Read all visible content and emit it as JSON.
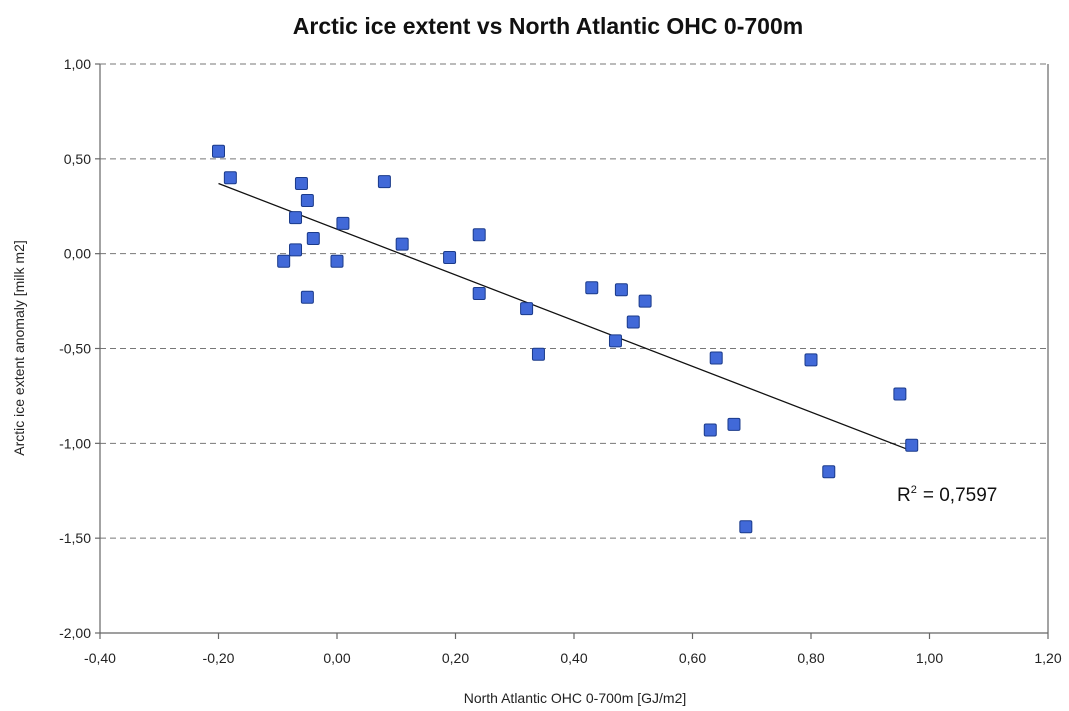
{
  "chart_data": {
    "type": "scatter",
    "title": "Arctic ice extent vs North Atlantic OHC 0-700m",
    "xlabel": "North Atlantic OHC 0-700m [GJ/m2]",
    "ylabel": "Arctic ice extent anomaly [milk m2]",
    "xlim": [
      -0.4,
      1.2
    ],
    "ylim": [
      -2.0,
      1.0
    ],
    "x_ticks": [
      -0.4,
      -0.2,
      0.0,
      0.2,
      0.4,
      0.6,
      0.8,
      1.0,
      1.2
    ],
    "x_tick_labels": [
      "-0,40",
      "-0,20",
      "0,00",
      "0,20",
      "0,40",
      "0,60",
      "0,80",
      "1,00",
      "1,20"
    ],
    "y_ticks": [
      1.0,
      0.5,
      0.0,
      -0.5,
      -1.0,
      -1.5,
      -2.0
    ],
    "y_tick_labels": [
      "1,00",
      "0,50",
      "0,00",
      "-0,50",
      "-1,00",
      "-1,50",
      "-2,00"
    ],
    "grid": "horizontal dashed",
    "marker_color": "#4169d8",
    "trendline": {
      "type": "linear",
      "x": [
        -0.2,
        0.97
      ],
      "y": [
        0.37,
        -1.04
      ],
      "r2_label": "R",
      "r2_sup": "2",
      "r2_value": "= 0,7597"
    },
    "series": [
      {
        "points": [
          {
            "x": -0.2,
            "y": 0.54
          },
          {
            "x": -0.18,
            "y": 0.4
          },
          {
            "x": -0.09,
            "y": -0.04
          },
          {
            "x": -0.07,
            "y": 0.19
          },
          {
            "x": -0.07,
            "y": 0.02
          },
          {
            "x": -0.06,
            "y": 0.37
          },
          {
            "x": -0.05,
            "y": 0.28
          },
          {
            "x": -0.05,
            "y": -0.23
          },
          {
            "x": -0.04,
            "y": 0.08
          },
          {
            "x": 0.0,
            "y": -0.04
          },
          {
            "x": 0.01,
            "y": 0.16
          },
          {
            "x": 0.08,
            "y": 0.38
          },
          {
            "x": 0.11,
            "y": 0.05
          },
          {
            "x": 0.19,
            "y": -0.02
          },
          {
            "x": 0.24,
            "y": 0.1
          },
          {
            "x": 0.24,
            "y": -0.21
          },
          {
            "x": 0.32,
            "y": -0.29
          },
          {
            "x": 0.34,
            "y": -0.53
          },
          {
            "x": 0.43,
            "y": -0.18
          },
          {
            "x": 0.47,
            "y": -0.46
          },
          {
            "x": 0.48,
            "y": -0.19
          },
          {
            "x": 0.5,
            "y": -0.36
          },
          {
            "x": 0.52,
            "y": -0.25
          },
          {
            "x": 0.63,
            "y": -0.93
          },
          {
            "x": 0.64,
            "y": -0.55
          },
          {
            "x": 0.67,
            "y": -0.9
          },
          {
            "x": 0.69,
            "y": -1.44
          },
          {
            "x": 0.8,
            "y": -0.56
          },
          {
            "x": 0.83,
            "y": -1.15
          },
          {
            "x": 0.95,
            "y": -0.74
          },
          {
            "x": 0.97,
            "y": -1.01
          }
        ]
      }
    ]
  }
}
